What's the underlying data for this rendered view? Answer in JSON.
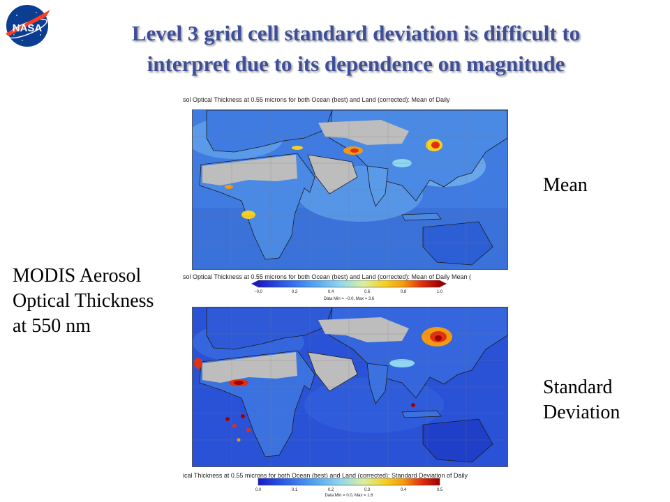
{
  "logo": {
    "text": "NASA"
  },
  "title": {
    "line1": "Level 3 grid cell standard deviation is difficult to",
    "line2": "interpret due to its dependence on magnitude"
  },
  "labels": {
    "mean": "Mean",
    "std_line1": "Standard",
    "std_line2": "Deviation",
    "modis_line1": "MODIS Aerosol",
    "modis_line2": "Optical Thickness",
    "modis_line3": "at 550 nm"
  },
  "map_mean": {
    "header": "sol Optical Thickness at 0.55 microns for both Ocean (best)  and Land (corrected): Mean of Daily"
  },
  "colorbar_mean": {
    "header": "sol Optical Thickness at 0.55 microns for both Ocean (best)  and Land (corrected): Mean of Daily Mean (",
    "ticks": [
      "−0.0",
      "0.2",
      "0.4",
      "0.6",
      "0.8",
      "1.0"
    ],
    "stats": "Data Min = −0.0, Max = 3.6"
  },
  "map_std": {
    "header": "ical Thickness at 0.55 microns for both Ocean (best)  and Land (corrected): Standard Deviation of Daily"
  },
  "colorbar_std": {
    "ticks": [
      "0.0",
      "0.1",
      "0.2",
      "0.3",
      "0.4",
      "0.5"
    ],
    "stats": "Data Min = 0.0, Max = 1.6"
  },
  "colors": {
    "title": "#3e4e9a",
    "ocean_mean": "#3f7be0",
    "ocean_std": "#2a52d6",
    "land_nodata": "#bdbdbd",
    "scale": [
      "#1a1ac8",
      "#2e5fe6",
      "#4fa0f0",
      "#8fd6f0",
      "#d8f0a0",
      "#f5d020",
      "#f59a10",
      "#e03010",
      "#a00000"
    ]
  }
}
